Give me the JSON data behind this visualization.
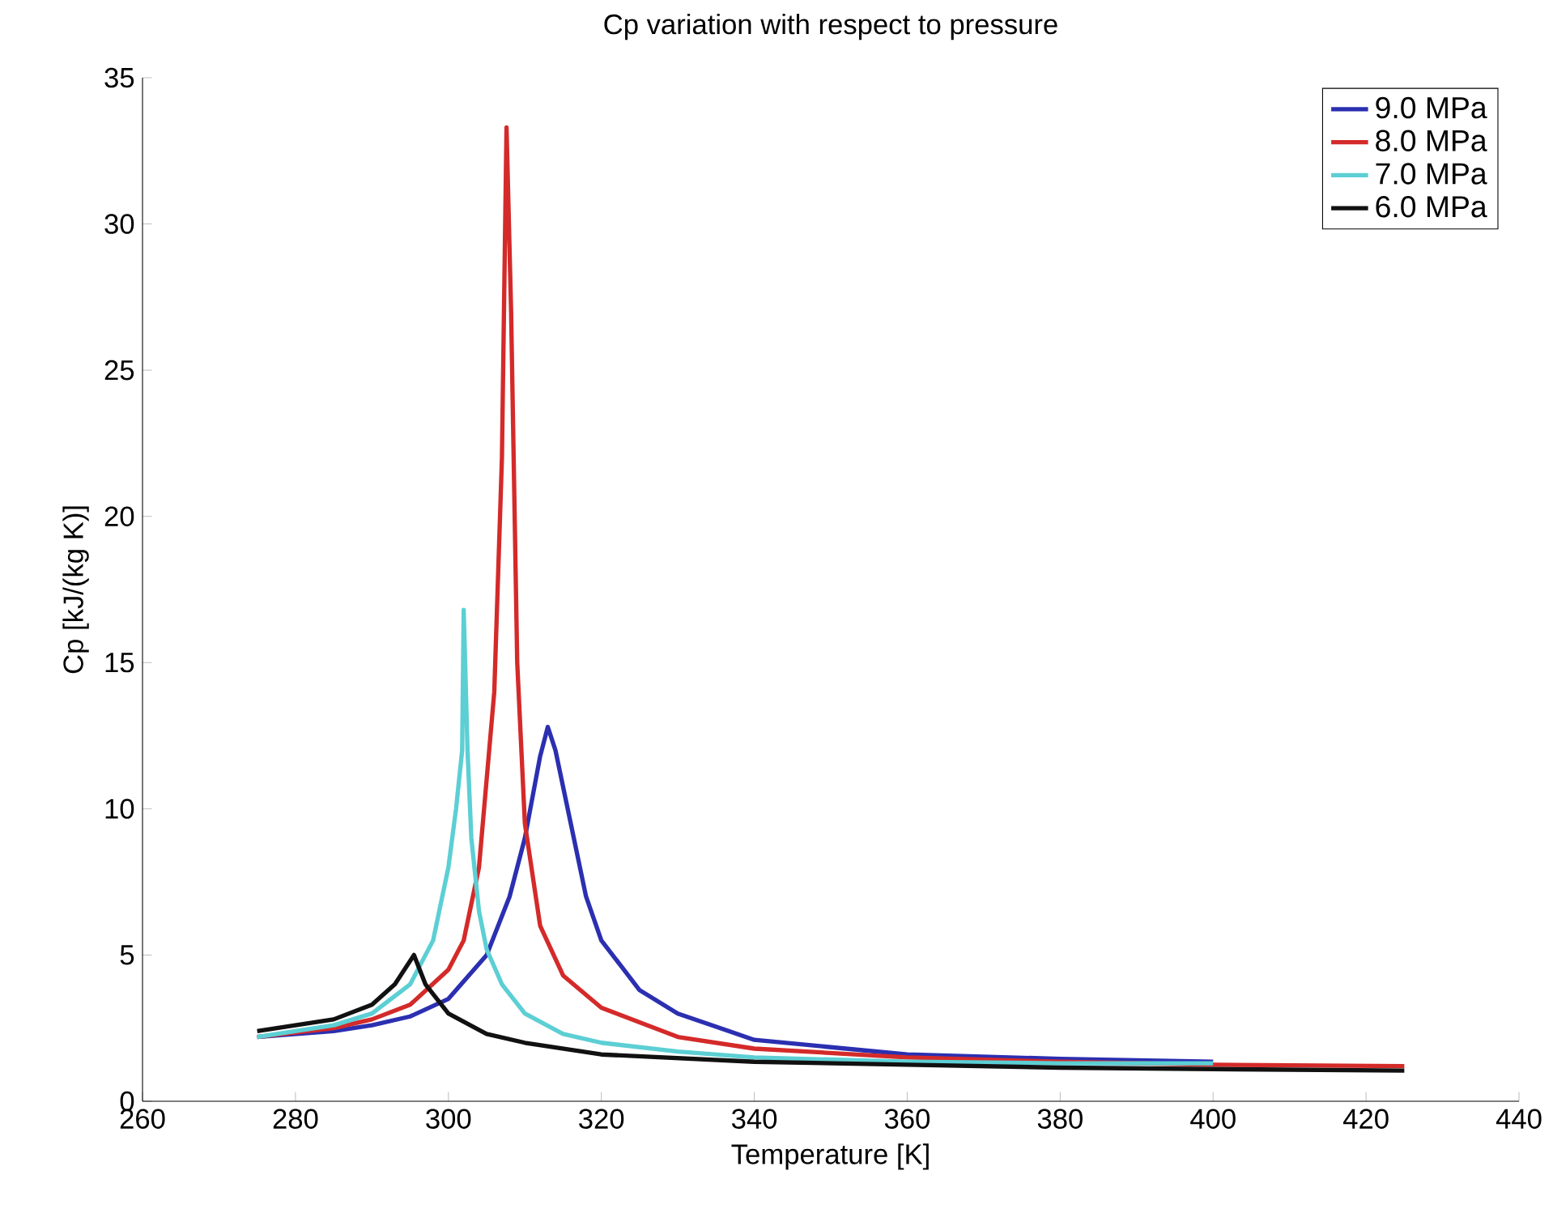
{
  "chart_data": {
    "type": "line",
    "title": "Cp variation with respect to pressure",
    "xlabel": "Temperature [K]",
    "ylabel": "Cp [kJ/(kg K)]",
    "xlim": [
      260,
      440
    ],
    "xticks": [
      260,
      280,
      300,
      320,
      340,
      360,
      380,
      400,
      420,
      440
    ],
    "ylim": [
      0,
      35
    ],
    "yticks": [
      0,
      5,
      10,
      15,
      20,
      25,
      30,
      35
    ],
    "grid": false,
    "legend": "top right",
    "marker": "none",
    "line_style": "solid",
    "series": [
      {
        "name": "9.0 MPa",
        "color": "#2b2fb0",
        "x": [
          275,
          285,
          290,
          295,
          300,
          305,
          308,
          310,
          312,
          313,
          314,
          316,
          318,
          320,
          325,
          330,
          340,
          360,
          380,
          400
        ],
        "values": [
          2.2,
          2.4,
          2.6,
          2.9,
          3.5,
          5,
          7,
          9,
          11.8,
          12.8,
          12,
          9.5,
          7,
          5.5,
          3.8,
          3,
          2.1,
          1.6,
          1.45,
          1.35
        ]
      },
      {
        "name": "8.0 MPa",
        "color": "#d42a2a",
        "x": [
          275,
          285,
          290,
          295,
          300,
          302,
          304,
          306,
          307,
          307.6,
          308.2,
          309,
          310,
          312,
          315,
          320,
          330,
          340,
          360,
          380,
          400,
          425
        ],
        "values": [
          2.2,
          2.5,
          2.8,
          3.3,
          4.5,
          5.5,
          8,
          14,
          22,
          33.3,
          27,
          15,
          9.5,
          6,
          4.3,
          3.2,
          2.2,
          1.8,
          1.5,
          1.35,
          1.25,
          1.2
        ]
      },
      {
        "name": "7.0 MPa",
        "color": "#5ccfd4",
        "x": [
          275,
          285,
          290,
          295,
          298,
          300,
          301,
          301.8,
          302,
          302.5,
          303,
          304,
          305,
          307,
          310,
          315,
          320,
          330,
          340,
          360,
          380,
          400
        ],
        "values": [
          2.2,
          2.6,
          3,
          4,
          5.5,
          8,
          10,
          12,
          16.8,
          12,
          9,
          6.5,
          5.2,
          4,
          3,
          2.3,
          2,
          1.7,
          1.5,
          1.35,
          1.3,
          1.3
        ]
      },
      {
        "name": "6.0 MPa",
        "color": "#111111",
        "x": [
          275,
          280,
          285,
          290,
          293,
          295.5,
          297,
          300,
          305,
          310,
          320,
          340,
          360,
          380,
          400,
          425
        ],
        "values": [
          2.4,
          2.6,
          2.8,
          3.3,
          4,
          5,
          4,
          3,
          2.3,
          2,
          1.6,
          1.35,
          1.25,
          1.15,
          1.1,
          1.05
        ]
      }
    ]
  }
}
